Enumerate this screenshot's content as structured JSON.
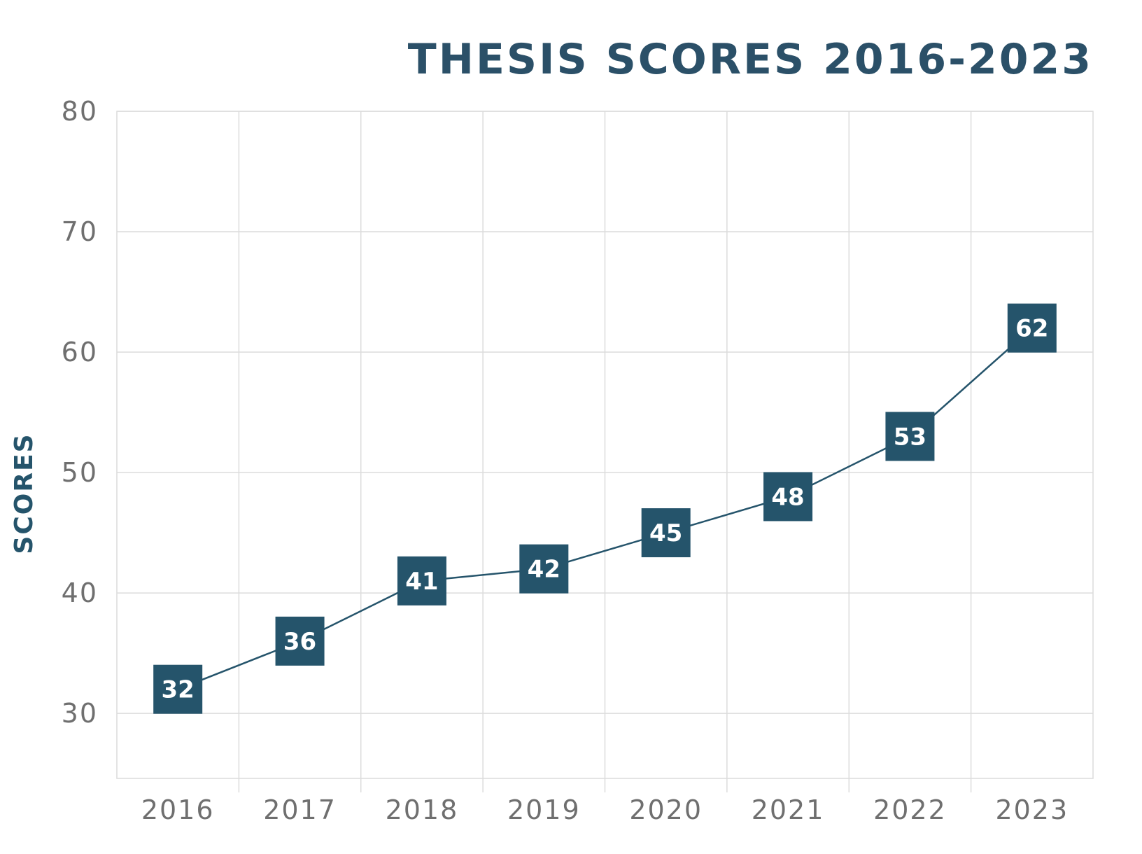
{
  "chart_data": {
    "type": "line",
    "title": "THESIS SCORES 2016-2023",
    "xlabel": "",
    "ylabel": "SCORES",
    "categories": [
      "2016",
      "2017",
      "2018",
      "2019",
      "2020",
      "2021",
      "2022",
      "2023"
    ],
    "series": [
      {
        "values": [
          32,
          36,
          41,
          42,
          45,
          48,
          53,
          62
        ]
      }
    ],
    "y_ticks": [
      30,
      40,
      50,
      60,
      70,
      80
    ],
    "ylim": [
      24.6,
      80
    ],
    "grid": true,
    "legend": "none",
    "data_labels": true,
    "marker": "square",
    "colors": {
      "accent": "#25546b",
      "title": "#2b5068",
      "tick_text": "#6f6f6f",
      "grid": "#dcdcdc",
      "label_text": "#ffffff"
    }
  }
}
